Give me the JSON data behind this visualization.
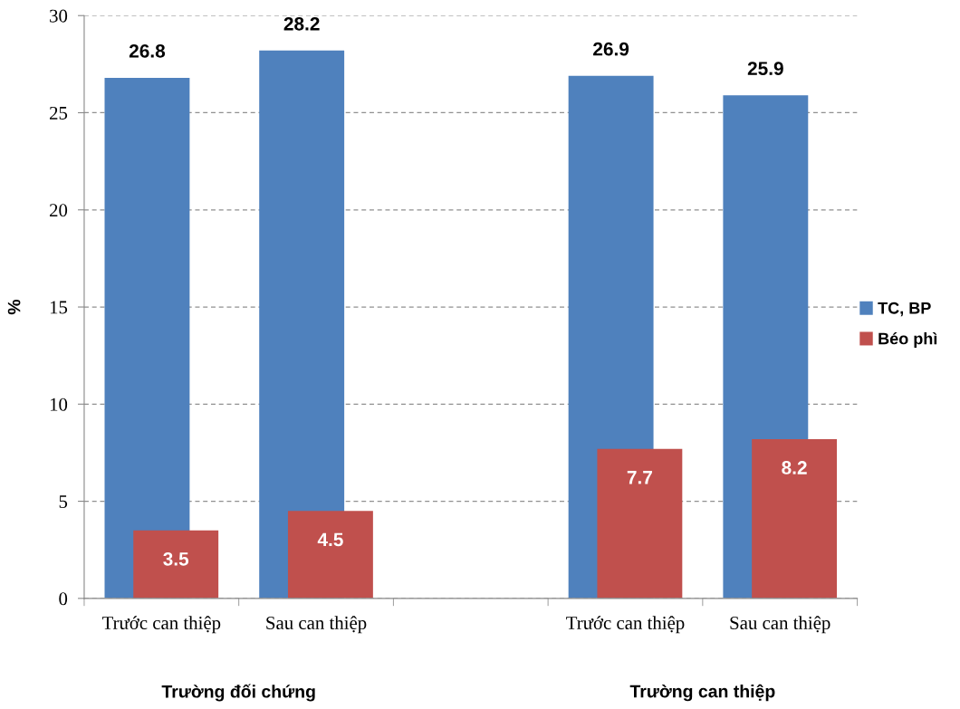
{
  "chart_data": {
    "type": "bar",
    "categories": [
      "Trước can thiệp",
      "Sau can thiệp",
      null,
      "Trước can thiệp",
      "Sau can thiệp"
    ],
    "series": [
      {
        "name": "TC, BP",
        "color": "#4f81bd",
        "values": [
          26.8,
          28.2,
          null,
          26.9,
          25.9
        ]
      },
      {
        "name": "Béo phì",
        "color": "#c0504d",
        "values": [
          3.5,
          4.5,
          null,
          7.7,
          8.2
        ]
      }
    ],
    "ylabel": "%",
    "ylim": [
      0,
      30
    ],
    "yticks": [
      0,
      5,
      10,
      15,
      20,
      25,
      30
    ],
    "grid": "y",
    "legend": "right",
    "data_labels": true,
    "annotations": [
      "Trường đối chứng",
      "Trường can thiệp"
    ]
  }
}
